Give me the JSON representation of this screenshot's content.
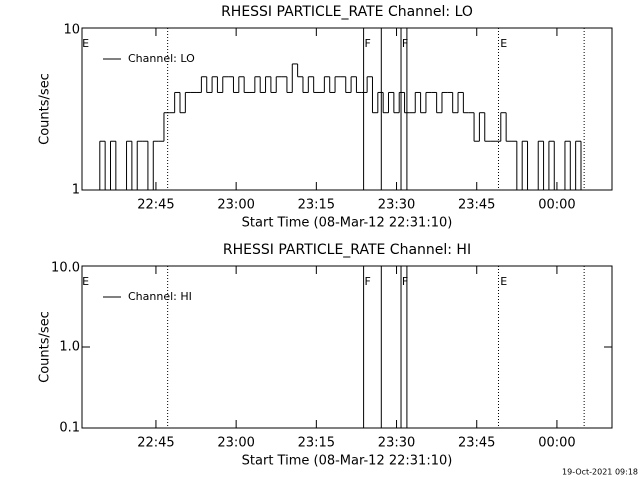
{
  "chart_data": [
    {
      "type": "step",
      "title": "RHESSI PARTICLE_RATE Channel: LO",
      "x_label": "Start Time (08-Mar-12 22:31:10)",
      "y_label": "Counts/sec",
      "xlim": [
        31.17,
        130.3
      ],
      "xticks": [
        {
          "value": 45,
          "label": "22:45"
        },
        {
          "value": 60,
          "label": "23:00"
        },
        {
          "value": 75,
          "label": "23:15"
        },
        {
          "value": 90,
          "label": "23:30"
        },
        {
          "value": 105,
          "label": "23:45"
        },
        {
          "value": 120,
          "label": "00:00"
        }
      ],
      "ylim": [
        1,
        10
      ],
      "ylog": true,
      "yticks": [
        1,
        10
      ],
      "x": [
        34,
        35,
        36,
        37,
        38,
        39,
        40,
        41,
        42,
        43,
        44,
        45,
        46,
        47,
        48,
        49,
        50,
        51,
        52,
        53,
        54,
        55,
        56,
        57,
        58,
        59,
        60,
        61,
        62,
        63,
        64,
        65,
        66,
        67,
        68,
        69,
        70,
        71,
        72,
        73,
        74,
        75,
        76,
        77,
        78,
        79,
        80,
        81,
        82,
        83,
        84,
        85,
        86,
        87,
        88,
        89,
        90,
        91,
        92,
        93,
        94,
        95,
        96,
        97,
        98,
        99,
        100,
        101,
        102,
        103,
        104,
        105,
        106,
        107,
        108,
        109,
        110,
        111,
        112,
        113,
        114,
        115,
        116,
        117,
        118,
        119,
        120,
        121,
        122,
        123,
        124,
        125
      ],
      "series": [
        {
          "name": "Channel: LO",
          "color": "#000000",
          "values": [
            1,
            2,
            1,
            2,
            1,
            1,
            2,
            1,
            2,
            2,
            1,
            2,
            2,
            3,
            3,
            4,
            3,
            4,
            4,
            4,
            5,
            4,
            5,
            4,
            5,
            5,
            4,
            5,
            4,
            4,
            5,
            4,
            5,
            4,
            5,
            5,
            4,
            6,
            5,
            4,
            5,
            4,
            4,
            5,
            4,
            5,
            5,
            4,
            5,
            4,
            4,
            5,
            3,
            4,
            3,
            4,
            3,
            4,
            3,
            3,
            4,
            3,
            4,
            4,
            3,
            4,
            4,
            3,
            4,
            3,
            3,
            2,
            3,
            2,
            2,
            2,
            3,
            2,
            2,
            1,
            2,
            1,
            1,
            2,
            1,
            2,
            1,
            1,
            2,
            1,
            2,
            1
          ]
        }
      ],
      "legend": "upper left",
      "markers": [
        {
          "x": 47.19,
          "style": "dotted"
        },
        {
          "x": 83.84,
          "style": "solid"
        },
        {
          "x": 87.15,
          "style": "solid"
        },
        {
          "x": 90.84,
          "style": "solid"
        },
        {
          "x": 91.94,
          "style": "solid"
        },
        {
          "x": 109.07,
          "style": "dotted"
        },
        {
          "x": 125.09,
          "style": "dotted"
        }
      ],
      "annotations": [
        {
          "text": "E",
          "x": 31.2
        },
        {
          "text": "F",
          "x": 84.0
        },
        {
          "text": "F",
          "x": 91.0
        },
        {
          "text": "E",
          "x": 109.4
        }
      ]
    },
    {
      "type": "step",
      "title": "RHESSI PARTICLE_RATE Channel: HI",
      "x_label": "Start Time (08-Mar-12 22:31:10)",
      "y_label": "Counts/sec",
      "xlim": [
        31.17,
        130.3
      ],
      "xticks": [
        {
          "value": 45,
          "label": "22:45"
        },
        {
          "value": 60,
          "label": "23:00"
        },
        {
          "value": 75,
          "label": "23:15"
        },
        {
          "value": 90,
          "label": "23:30"
        },
        {
          "value": 105,
          "label": "23:45"
        },
        {
          "value": 120,
          "label": "00:00"
        }
      ],
      "ylim": [
        0.1,
        10
      ],
      "ylog": true,
      "yticks": [
        0.1,
        {
          "value": 1,
          "label": "1.0"
        },
        {
          "value": 10,
          "label": "10.0"
        }
      ],
      "x": [],
      "series": [
        {
          "name": "Channel: HI",
          "color": "#000000",
          "values": []
        }
      ],
      "legend": "upper left",
      "markers": [
        {
          "x": 47.19,
          "style": "dotted"
        },
        {
          "x": 83.84,
          "style": "solid"
        },
        {
          "x": 87.15,
          "style": "solid"
        },
        {
          "x": 90.84,
          "style": "solid"
        },
        {
          "x": 91.94,
          "style": "solid"
        },
        {
          "x": 109.07,
          "style": "dotted"
        },
        {
          "x": 125.09,
          "style": "dotted"
        }
      ],
      "annotations": [
        {
          "text": "E",
          "x": 31.2
        },
        {
          "text": "F",
          "x": 84.0
        },
        {
          "text": "F",
          "x": 91.0
        },
        {
          "text": "E",
          "x": 109.4
        }
      ]
    }
  ],
  "footer": "19-Oct-2021 09:18"
}
